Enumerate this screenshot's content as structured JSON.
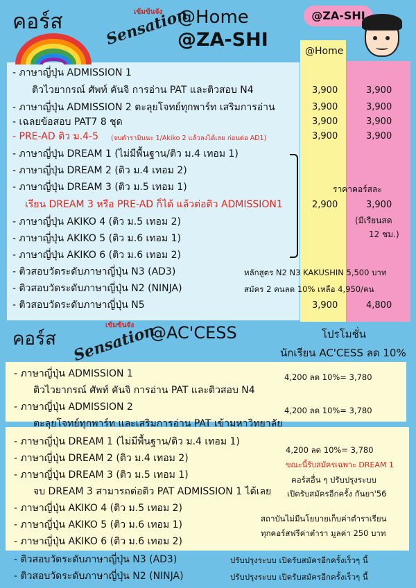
{
  "header1": {
    "course": "คอร์ส",
    "home": "@Home",
    "zashi": "@ZA-SHI",
    "badge": "@ZA-SHI",
    "logo_small": "เข้มข้นจัง",
    "logo_main": "Sensation"
  },
  "columns": {
    "home_label": "@Home"
  },
  "top_rows": [
    {
      "text": "- ภาษาญี่ปุ่น ADMISSION 1"
    },
    {
      "text": "ติวไวยากรณ์ ศัพท์ คันจิ การอ่าน PAT และติวสอบ N4",
      "home": "3,900",
      "zashi": "3,900"
    },
    {
      "text": "- ภาษาญี่ปุ่น ADMISSION 2 ตะลุยโจทย์ทุกพาร์ท เสริมการอ่าน",
      "home": "3,900",
      "zashi": "3,900"
    },
    {
      "text": "- เฉลยข้อสอบ PAT7  8  ชุด",
      "home": "3,900",
      "zashi": "3,900"
    },
    {
      "text": "- PRE-AD  ติว ม.4-5",
      "note": "(จบตำรามินนะ 1/Akiko 2 แล้วลงได้เลย ก่อนต่อ AD1)",
      "home": "3,900",
      "zashi": "3,900"
    },
    {
      "text": "- ภาษาญี่ปุ่น DREAM 1  (ไม่มีพื้นฐาน/ติว ม.4 เทอม 1)"
    },
    {
      "text": "- ภาษาญี่ปุ่น DREAM 2  (ติว ม.4 เทอม 2)"
    },
    {
      "text": "- ภาษาญี่ปุ่น DREAM 3  (ติว ม.5 เทอม 1)"
    },
    {
      "text": "เรียน DREAM 3 หรือ PRE-AD ก็ได้ แล้วต่อติว ADMISSION1"
    },
    {
      "text": "- ภาษาญี่ปุ่น AKIKO 4  (ติว ม.5 เทอม 2)"
    },
    {
      "text": "- ภาษาญี่ปุ่น AKIKO 5  (ติว ม.6 เทอม 1)"
    },
    {
      "text": "- ภาษาญี่ปุ่น AKIKO 6  (ติว ม.6 เทอม 2)"
    },
    {
      "text": "- ติวสอบวัดระดับภาษาญี่ปุ่น N3 (AD3)"
    },
    {
      "text": "- ติวสอบวัดระดับภาษาญี่ปุ่น N2 (NINJA)"
    },
    {
      "text": "- ติวสอบวัดระดับภาษาญี่ปุ่น N5",
      "home": "3,900",
      "zashi": "4,800"
    }
  ],
  "top_notes": {
    "per_course": "ราคาคอร์สละ",
    "dream_home": "2,900",
    "dream_zashi": "3,900",
    "self_study": "(มีเรียนสด",
    "hours": "12 ชม.)",
    "n2n3_line1": "หลักสูตร N2 N3 KAKUSHIN 5,500 บาท",
    "n2n3_line2": "สมัคร 2 คนลด 10% เหลือ 4,950/คน"
  },
  "header2": {
    "course": "คอร์ส",
    "access": "@AC'CESS",
    "promo": "โปรโมชั่น",
    "promo_detail": "นักเรียน AC'CESS ลด 10%",
    "logo_small": "เข้มข้นจัง",
    "logo_main": "Sensation"
  },
  "bottom_rows": [
    {
      "text": "- ภาษาญี่ปุ่น ADMISSION 1"
    },
    {
      "text": "ติวไวยากรณ์ ศัพท์ คันจิ การอ่าน PAT และติวสอบ N4"
    },
    {
      "text": "- ภาษาญี่ปุ่น ADMISSION 2"
    },
    {
      "text": "ตะลุยโจทย์ทุกพาร์ท และเสริมการอ่าน PAT เข้ามหาวิทยาลัย"
    },
    {
      "text": "- ภาษาญี่ปุ่น DREAM 1  (ไม่มีพื้นฐาน/ติว ม.4 เทอม 1)"
    },
    {
      "text": "- ภาษาญี่ปุ่น DREAM 2  (ติว ม.4 เทอม 2)"
    },
    {
      "text": "- ภาษาญี่ปุ่น DREAM 3  (ติว ม.5 เทอม 1)"
    },
    {
      "text": "จบ DREAM 3 สามารถต่อติว PAT ADMISSION 1 ได้เลย"
    },
    {
      "text": "- ภาษาญี่ปุ่น AKIKO 4  (ติว ม.5 เทอม 2)"
    },
    {
      "text": "- ภาษาญี่ปุ่น AKIKO 5  (ติว ม.6 เทอม 1)"
    },
    {
      "text": "- ภาษาญี่ปุ่น AKIKO 6  (ติว ม.6 เทอม 2)"
    },
    {
      "text": "- ติวสอบวัดระดับภาษาญี่ปุ่น N3 (AD3)"
    },
    {
      "text": "- ติวสอบวัดระดับภาษาญี่ปุ่น N2 (NINJA)"
    }
  ],
  "bottom_notes": {
    "adm1_price": "4,200  ลด   10%= 3,780",
    "adm2_price": "4,200  ลด   10%= 3,780",
    "dream_price": "4,200  ลด  10%= 3,780",
    "dream_only": "ขณะนี้รับสมัครเฉพาะ DREAM 1",
    "other_line1": "คอร์สอื่น ๆ ปรับปรุงระบบ",
    "other_line2": "เปิดรับสมัครอีกครั้ง กันยา'56",
    "policy1": "สถาบันไม่มีนโยบายเก็บค่าตำราเรียน",
    "policy2": "ทุกคอร์สฟรีค่าตำรา มูลค่า 250 บาท",
    "n3_status": "ปรับปรุงระบบ เปิดรับสมัครอีกครั้งเร็วๆ นี้",
    "n2_status": "ปรับปรุงระบบ เปิดรับสมัครอีกครั้งเร็วๆ นี้"
  }
}
